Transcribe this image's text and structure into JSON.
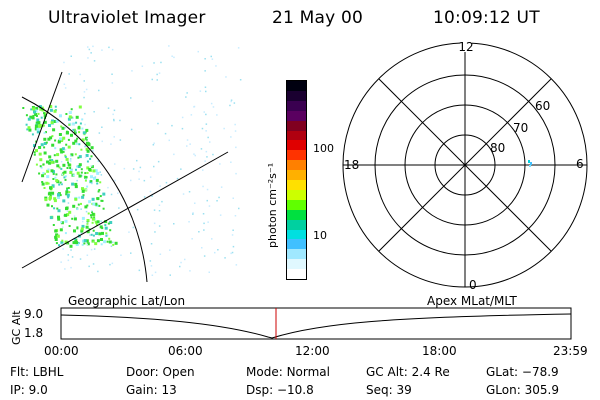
{
  "header": {
    "instrument": "Ultraviolet Imager",
    "date": "21 May 00",
    "time": "10:09:12 UT"
  },
  "colorbar": {
    "label": "photon cm⁻²s⁻¹",
    "ticks": [
      "100",
      "10"
    ],
    "colors": [
      "#000010",
      "#1a0030",
      "#3a0050",
      "#5a0060",
      "#800020",
      "#b00010",
      "#e00000",
      "#ff3300",
      "#ff8000",
      "#ffb000",
      "#ffe000",
      "#ccff00",
      "#60ff00",
      "#00e040",
      "#00d0a0",
      "#00e0e0",
      "#40c0ff",
      "#a0e8ff",
      "#e0f8ff",
      "#ffffff"
    ]
  },
  "polar": {
    "labels": {
      "top": "12",
      "left": "18",
      "right": "6",
      "bottom": "0"
    },
    "lat_labels": [
      "60",
      "70",
      "80"
    ]
  },
  "timeline": {
    "axis_label": "GC Alt",
    "left_title": "Geographic Lat/Lon",
    "right_title": "Apex MLat/MLT",
    "y_ticks": [
      "9.0",
      "1.8"
    ],
    "x_ticks": [
      "00:00",
      "06:00",
      "12:00",
      "18:00",
      "23:59"
    ],
    "marker_color": "#cc0000"
  },
  "footer": {
    "rows": [
      [
        {
          "key": "Flt:",
          "value": "LBHL"
        },
        {
          "key": "Door:",
          "value": "Open"
        },
        {
          "key": "Mode:",
          "value": "Normal"
        },
        {
          "key": "GC Alt:",
          "value": "2.4 Re"
        },
        {
          "key": "GLat:",
          "value": "−78.9"
        }
      ],
      [
        {
          "key": "IP:",
          "value": "9.0"
        },
        {
          "key": "Gain:",
          "value": "13"
        },
        {
          "key": "Dsp:",
          "value": "−10.8"
        },
        {
          "key": "Seq:",
          "value": "39"
        },
        {
          "key": "GLon:",
          "value": "305.9"
        }
      ]
    ]
  }
}
